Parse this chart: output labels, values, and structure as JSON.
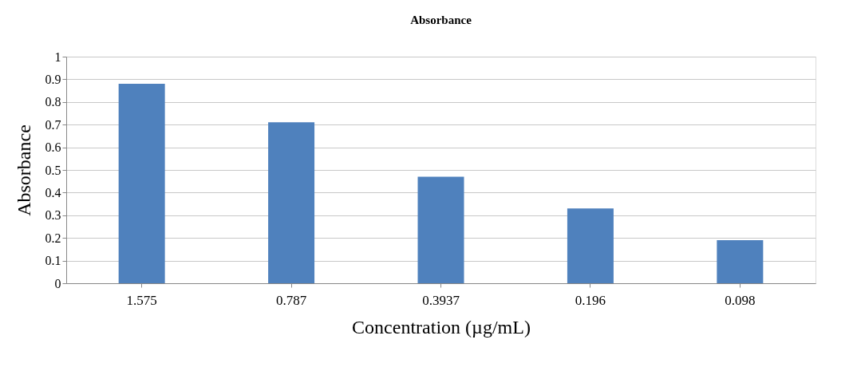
{
  "chart_data": {
    "type": "bar",
    "title": "Absorbance",
    "xlabel": "Concentration (µg/mL)",
    "ylabel": "Absorbance",
    "categories": [
      "1.575",
      "0.787",
      "0.3937",
      "0.196",
      "0.098"
    ],
    "values": [
      0.88,
      0.71,
      0.47,
      0.33,
      0.19
    ],
    "color": "#4f81bd",
    "ylim": [
      0,
      1
    ],
    "yticks": [
      0,
      0.1,
      0.2,
      0.3,
      0.4,
      0.5,
      0.6,
      0.7,
      0.8,
      0.9,
      1
    ],
    "grid": "y"
  }
}
